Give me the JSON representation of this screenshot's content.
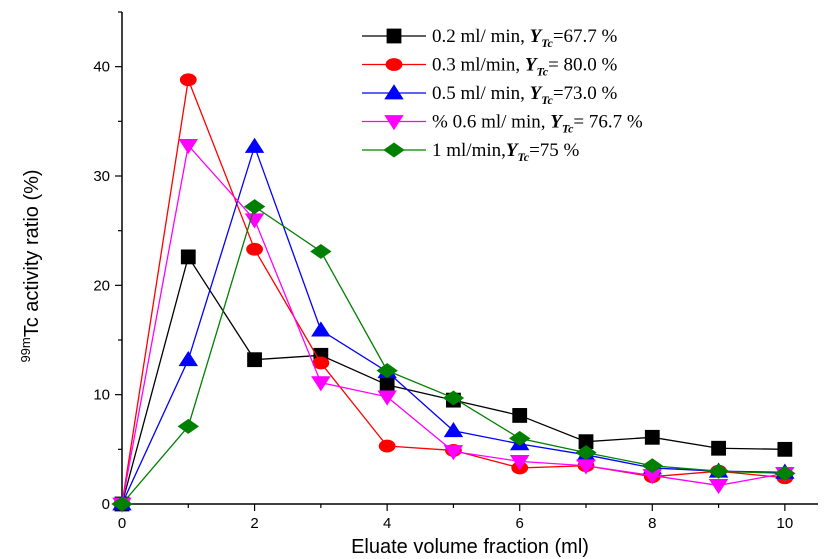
{
  "chart_data": {
    "type": "line",
    "xlabel": "Eluate volume fraction (ml)",
    "ylabel": {
      "superscript": "99m",
      "main": "Tc activity ratio (%)"
    },
    "xlim": [
      0,
      10.5
    ],
    "ylim": [
      0,
      45
    ],
    "x_ticks": [
      0,
      2,
      4,
      6,
      8,
      10
    ],
    "y_ticks": [
      0,
      10,
      20,
      30,
      40
    ],
    "x_minor_step": 1,
    "y_minor_step": 5,
    "grid": false,
    "legend_position": "top-right",
    "series": [
      {
        "name": "0.2 ml/ min, ",
        "legend_symbol": "Y",
        "legend_subscript": "Tc",
        "legend_value": "=67.7 %",
        "color": "#000000",
        "marker": "square",
        "x": [
          0,
          1,
          2,
          3,
          4,
          5,
          6,
          7,
          8,
          9,
          10
        ],
        "y": [
          0,
          22.6,
          13.2,
          13.6,
          10.9,
          9.5,
          8.1,
          5.7,
          6.1,
          5.1,
          5.0
        ]
      },
      {
        "name": "0.3 ml/min, ",
        "legend_symbol": "Y",
        "legend_subscript": "Tc",
        "legend_value": "= 80.0 %",
        "color": "#ff0000",
        "marker": "circle",
        "x": [
          0,
          1,
          2,
          3,
          4,
          5,
          6,
          7,
          8,
          9,
          10
        ],
        "y": [
          0,
          38.8,
          23.3,
          12.9,
          5.3,
          4.9,
          3.3,
          3.5,
          2.5,
          3.0,
          2.4
        ]
      },
      {
        "name": "0.5 ml/ min, ",
        "legend_symbol": "Y",
        "legend_subscript": "Tc",
        "legend_value": "=73.0 %",
        "color": "#0000ff",
        "marker": "triangle-up",
        "x": [
          0,
          1,
          2,
          3,
          4,
          5,
          6,
          7,
          8,
          9,
          10
        ],
        "y": [
          0,
          13.2,
          32.7,
          15.9,
          12.1,
          6.7,
          5.5,
          4.5,
          3.3,
          3.0,
          2.9
        ]
      },
      {
        "name": "% 0.6 ml/ min, ",
        "legend_symbol": "Y",
        "legend_subscript": "Tc",
        "legend_value": "= 76.7 %",
        "color": "#ff00ff",
        "marker": "triangle-down",
        "x": [
          0,
          1,
          2,
          3,
          4,
          5,
          6,
          7,
          8,
          9,
          10
        ],
        "y": [
          0,
          32.8,
          26.0,
          11.1,
          9.8,
          4.8,
          3.9,
          3.5,
          2.6,
          1.7,
          2.8
        ]
      },
      {
        "name": "1 ml/min,",
        "legend_symbol": "Y",
        "legend_subscript": "Tc",
        "legend_value": "=75 %",
        "color": "#008000",
        "marker": "diamond",
        "x": [
          0,
          1,
          2,
          3,
          4,
          5,
          6,
          7,
          8,
          9,
          10
        ],
        "y": [
          0,
          7.1,
          27.2,
          23.1,
          12.2,
          9.7,
          6.0,
          4.7,
          3.5,
          3.0,
          2.8
        ]
      }
    ]
  }
}
